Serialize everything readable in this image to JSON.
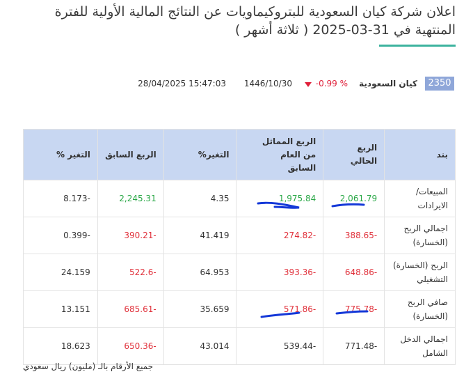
{
  "header": {
    "title_lines": [
      "اعلان شركة كيان السعودية للبتروكيماويات عن النتائج المالية الأولية للفترة",
      "المنتهية في 31-03-2025 ( ثلاثة أشهر )"
    ],
    "code": "2350",
    "company": "كيان السعودية",
    "change": "-0.99 %",
    "hijri_date": "1446/10/30",
    "datetime": "28/04/2025 15:47:03"
  },
  "table": {
    "headers": [
      "بند",
      "الربع الحالي",
      "الربع المماثل من العام السابق",
      "التغير%",
      "الربع السابق",
      "التغير %"
    ],
    "rows": [
      [
        "المبيعات/ الايرادات",
        "2,061.79",
        "1,975.84",
        "4.35",
        "2,245.31",
        "8.173-"
      ],
      [
        "اجمالي الربح (الخسارة)",
        "388.65-",
        "274.82-",
        "41.419",
        "390.21-",
        "0.399-"
      ],
      [
        "الربح (الخسارة) التشغيلي",
        "648.86-",
        "393.36-",
        "64.953",
        "522.6-",
        "24.159"
      ],
      [
        "صافي الربح (الخسارة)",
        "775.78-",
        "571.86-",
        "35.659",
        "685.61-",
        "13.151"
      ],
      [
        "اجمالي الدخل الشامل",
        "771.48-",
        "539.44-",
        "43.014",
        "650.36-",
        "18.623"
      ]
    ]
  },
  "footnote": "جميع الأرقام بالـ (مليون) ريال سعودي"
}
